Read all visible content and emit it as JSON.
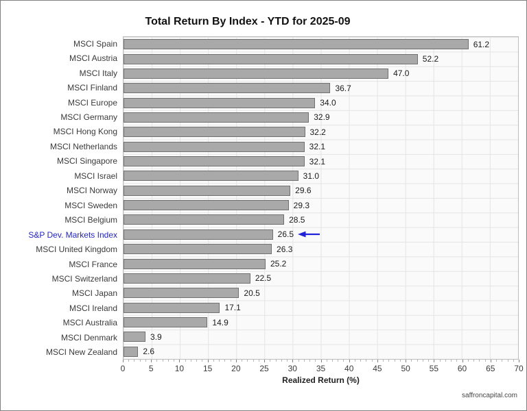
{
  "title": "Total Return By Index - YTD for 2025-09",
  "watermark": "saffroncapital.com",
  "chart_data": {
    "type": "bar",
    "orientation": "horizontal",
    "title": "Total Return By Index - YTD for 2025-09",
    "xlabel": "Realized Return (%)",
    "ylabel": "",
    "xlim": [
      0,
      70
    ],
    "x_ticks": [
      0,
      5,
      10,
      15,
      20,
      25,
      30,
      35,
      40,
      45,
      50,
      55,
      60,
      65,
      70
    ],
    "grid": true,
    "legend": "none",
    "categories": [
      "MSCI Spain",
      "MSCI Austria",
      "MSCI Italy",
      "MSCI Finland",
      "MSCI Europe",
      "MSCI Germany",
      "MSCI Hong Kong",
      "MSCI Netherlands",
      "MSCI Singapore",
      "MSCI Israel",
      "MSCI Norway",
      "MSCI Sweden",
      "MSCI Belgium",
      "S&P Dev. Markets Index",
      "MSCI United Kingdom",
      "MSCI France",
      "MSCI Switzerland",
      "MSCI Japan",
      "MSCI Ireland",
      "MSCI Australia",
      "MSCI Denmark",
      "MSCI New Zealand"
    ],
    "values": [
      61.2,
      52.2,
      47.0,
      36.7,
      34.0,
      32.9,
      32.2,
      32.1,
      32.1,
      31.0,
      29.6,
      29.3,
      28.5,
      26.5,
      26.3,
      25.2,
      22.5,
      20.5,
      17.1,
      14.9,
      3.9,
      2.6
    ],
    "highlight": {
      "category": "S&P Dev. Markets Index",
      "index": 13,
      "value": 26.5,
      "annotation": "left-arrow"
    },
    "colors": {
      "bar_fill": "#a9a9a9",
      "bar_border": "#707070",
      "highlight_text": "#2222dd",
      "arrow": "#2222dd"
    }
  }
}
